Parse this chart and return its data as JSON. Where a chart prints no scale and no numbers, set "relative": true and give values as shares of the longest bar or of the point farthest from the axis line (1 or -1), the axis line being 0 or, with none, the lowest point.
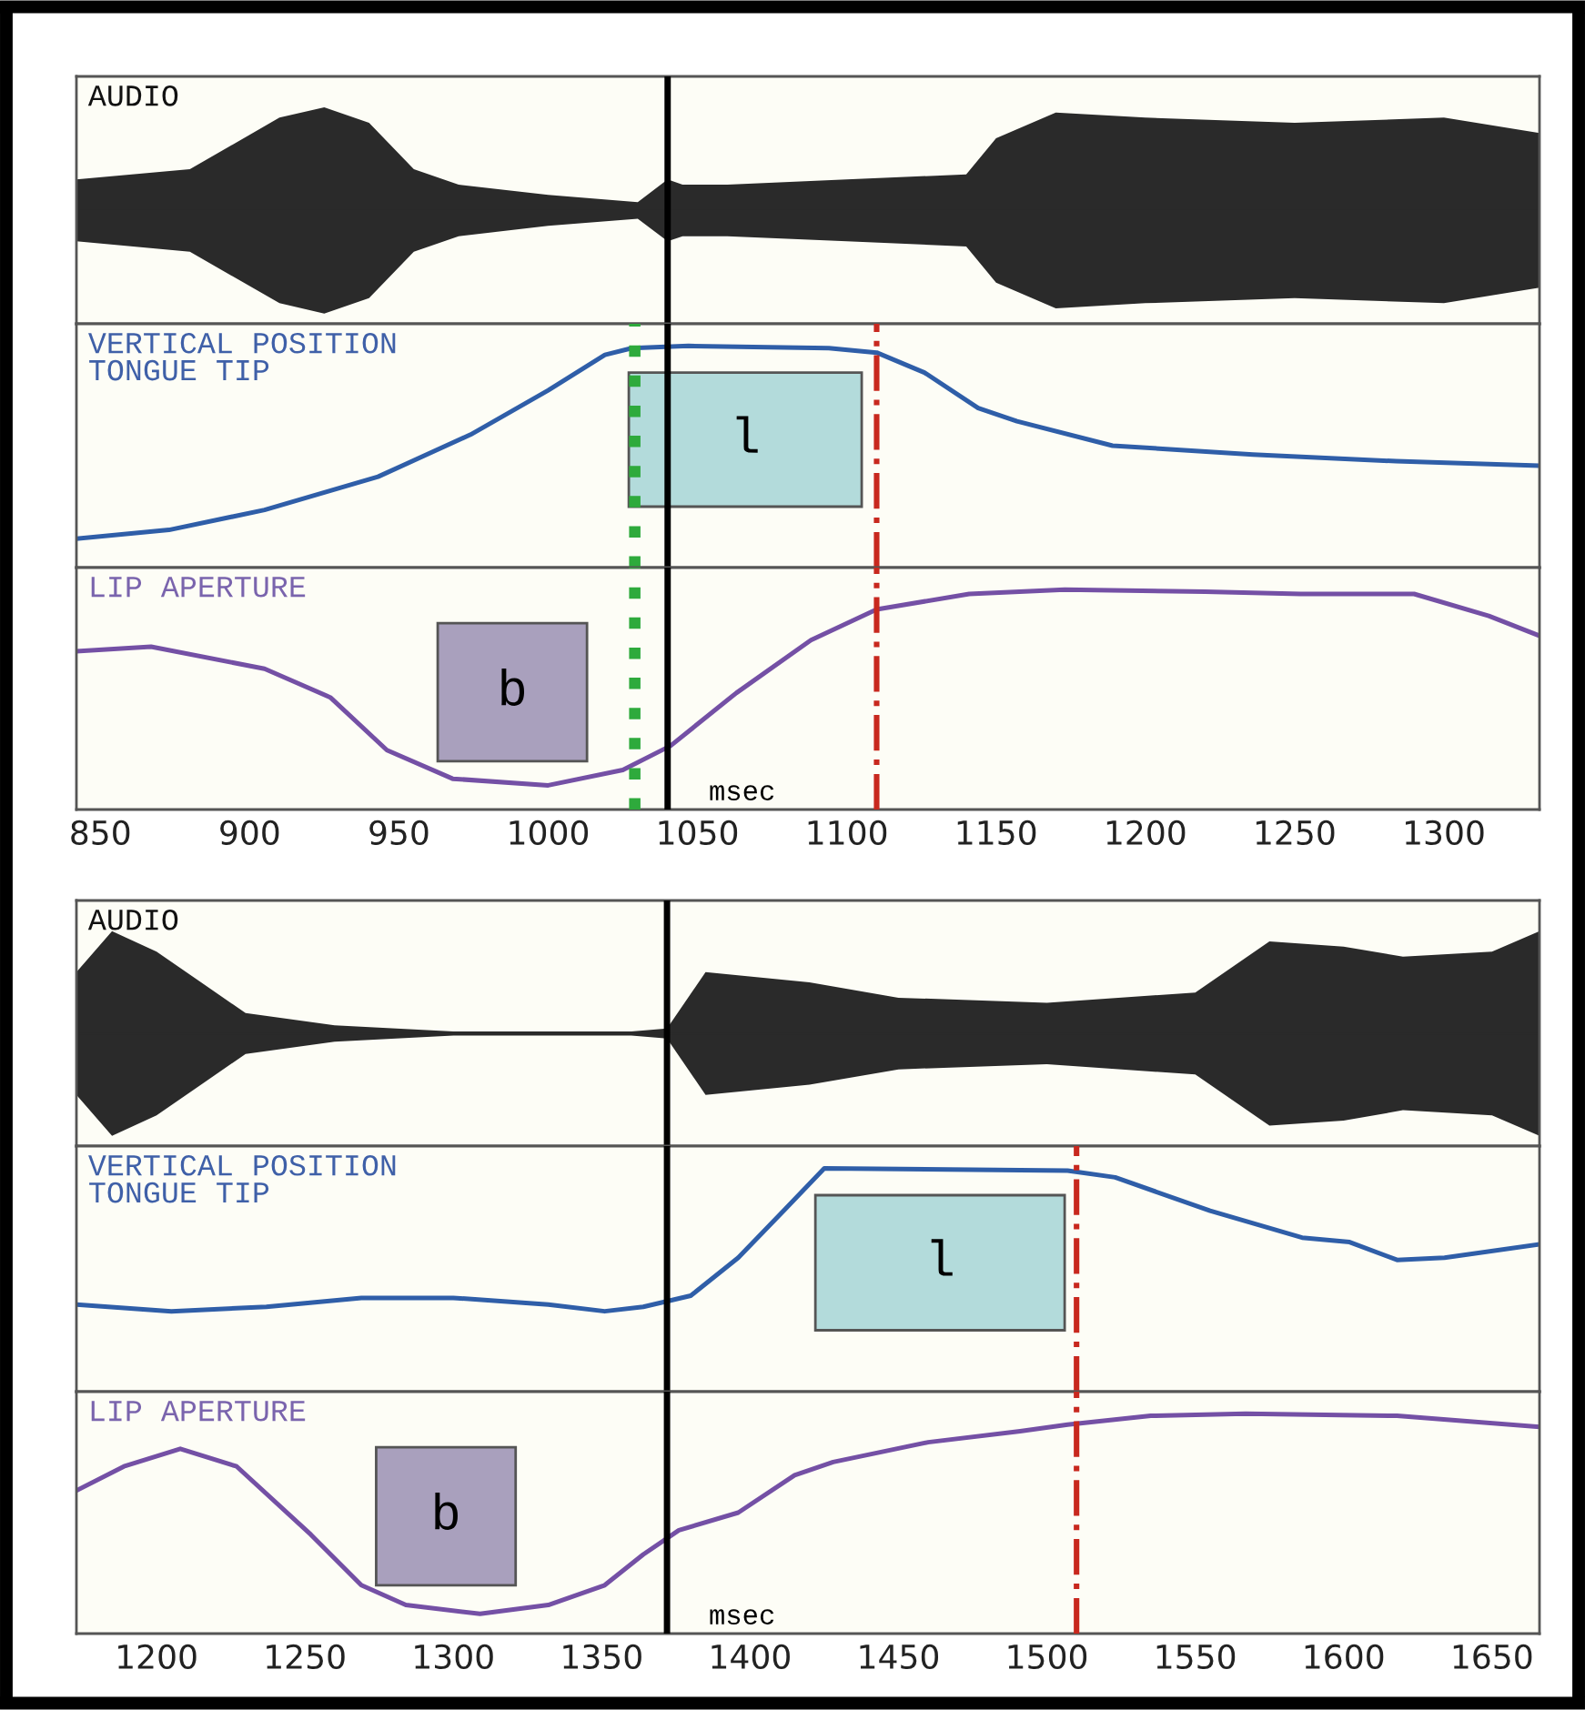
{
  "chart_data": [
    {
      "type": "area",
      "title": "AUDIO",
      "relative": true,
      "xlim": [
        842,
        1332
      ],
      "xticks": [
        850,
        900,
        950,
        1000,
        1050,
        1100,
        1150,
        1200,
        1250,
        1300
      ],
      "tick_labels": false,
      "series": [
        {
          "color": "#2a2a2a",
          "x": [
            842,
            880,
            910,
            925,
            940,
            955,
            970,
            1000,
            1030,
            1040,
            1045,
            1060,
            1100,
            1140,
            1150,
            1170,
            1200,
            1250,
            1300,
            1332
          ],
          "values": [
            0.3,
            0.4,
            0.9,
            1,
            0.85,
            0.4,
            0.25,
            0.15,
            0.08,
            0.3,
            0.25,
            0.25,
            0.3,
            0.35,
            0.7,
            0.95,
            0.9,
            0.85,
            0.9,
            0.75
          ]
        },
        {
          "color": "#2a2a2a",
          "x": [
            842,
            880,
            910,
            925,
            940,
            955,
            970,
            1000,
            1030,
            1040,
            1045,
            1060,
            1100,
            1140,
            1150,
            1170,
            1200,
            1250,
            1300,
            1332
          ],
          "values": [
            -0.3,
            -0.4,
            -0.9,
            -1,
            -0.85,
            -0.4,
            -0.25,
            -0.15,
            -0.08,
            -0.3,
            -0.25,
            -0.25,
            -0.3,
            -0.35,
            -0.7,
            -0.95,
            -0.9,
            -0.85,
            -0.9,
            -0.75
          ]
        }
      ],
      "ref_lines": [
        {
          "axis": "x",
          "value": 1040,
          "color": "#000000",
          "line_style": "solid"
        }
      ]
    },
    {
      "type": "line",
      "title": "VERTICAL POSITION\nTONGUE TIP",
      "relative": true,
      "xlim": [
        842,
        1332
      ],
      "xticks": [
        850,
        900,
        950,
        1000,
        1050,
        1100,
        1150,
        1200,
        1250,
        1300
      ],
      "tick_labels": false,
      "series": [
        {
          "color": "#2f5ea8",
          "x": [
            842,
            873,
            905,
            943,
            974,
            1000,
            1019,
            1028,
            1047,
            1094,
            1110,
            1126,
            1144,
            1157,
            1189,
            1236,
            1284,
            1332
          ],
          "values": [
            0.13,
            0.17,
            0.26,
            0.41,
            0.6,
            0.8,
            0.96,
            0.99,
            1,
            0.99,
            0.97,
            0.88,
            0.72,
            0.66,
            0.55,
            0.51,
            0.48,
            0.46
          ]
        }
      ],
      "ref_lines": [
        {
          "axis": "x",
          "value": 1040,
          "color": "#000000",
          "line_style": "solid"
        },
        {
          "axis": "x",
          "value": 1029,
          "color": "#2eaa3c",
          "line_style": "dotted"
        },
        {
          "axis": "x",
          "value": 1110,
          "color": "#c8281e",
          "line_style": "dashdot"
        }
      ],
      "bands": [
        {
          "axis": "x",
          "from": 1027,
          "to": 1105,
          "label": "l",
          "color": "#b3dbdb"
        }
      ]
    },
    {
      "type": "line",
      "title": "LIP APERTURE",
      "relative": true,
      "xlim": [
        842,
        1332
      ],
      "xticks": [
        850,
        900,
        950,
        1000,
        1050,
        1100,
        1150,
        1200,
        1250,
        1300
      ],
      "tick_labels": "x",
      "series": [
        {
          "color": "#7450a5",
          "x": [
            842,
            867,
            905,
            927,
            946,
            968,
            1000,
            1025,
            1041,
            1063,
            1088,
            1110,
            1141,
            1173,
            1220,
            1252,
            1290,
            1315,
            1332
          ],
          "values": [
            0.72,
            0.74,
            0.64,
            0.51,
            0.27,
            0.14,
            0.11,
            0.18,
            0.29,
            0.53,
            0.77,
            0.91,
            0.98,
            1,
            0.99,
            0.98,
            0.98,
            0.88,
            0.79
          ]
        }
      ],
      "ref_lines": [
        {
          "axis": "x",
          "value": 1040,
          "color": "#000000",
          "line_style": "solid"
        },
        {
          "axis": "x",
          "value": 1029,
          "color": "#2eaa3c",
          "line_style": "dotted"
        },
        {
          "axis": "x",
          "value": 1110,
          "color": "#c8281e",
          "line_style": "dashdot"
        }
      ],
      "bands": [
        {
          "axis": "x",
          "from": 963,
          "to": 1013,
          "label": "b",
          "color": "#a9a0bd"
        }
      ],
      "annotations": [
        "msec"
      ]
    },
    {
      "type": "area",
      "title": "AUDIO",
      "relative": true,
      "xlim": [
        1173,
        1666
      ],
      "xticks": [
        1200,
        1250,
        1300,
        1350,
        1400,
        1450,
        1500,
        1550,
        1600,
        1650
      ],
      "tick_labels": false,
      "series": [
        {
          "color": "#2a2a2a",
          "x": [
            1173,
            1185,
            1200,
            1215,
            1230,
            1260,
            1300,
            1360,
            1372,
            1385,
            1420,
            1450,
            1500,
            1550,
            1575,
            1600,
            1620,
            1650,
            1666
          ],
          "values": [
            0.6,
            1,
            0.8,
            0.5,
            0.2,
            0.08,
            0.02,
            0.02,
            0.05,
            0.6,
            0.5,
            0.35,
            0.3,
            0.4,
            0.9,
            0.85,
            0.75,
            0.8,
            1
          ]
        },
        {
          "color": "#2a2a2a",
          "x": [
            1173,
            1185,
            1200,
            1215,
            1230,
            1260,
            1300,
            1360,
            1372,
            1385,
            1420,
            1450,
            1500,
            1550,
            1575,
            1600,
            1620,
            1650,
            1666
          ],
          "values": [
            -0.6,
            -1,
            -0.8,
            -0.5,
            -0.2,
            -0.08,
            -0.02,
            -0.02,
            -0.05,
            -0.6,
            -0.5,
            -0.35,
            -0.3,
            -0.4,
            -0.9,
            -0.85,
            -0.75,
            -0.8,
            -1
          ]
        }
      ],
      "ref_lines": [
        {
          "axis": "x",
          "value": 1372,
          "color": "#000000",
          "line_style": "solid"
        }
      ]
    },
    {
      "type": "line",
      "title": "VERTICAL POSITION\nTONGUE TIP",
      "relative": true,
      "xlim": [
        1173,
        1666
      ],
      "xticks": [
        1200,
        1250,
        1300,
        1350,
        1400,
        1450,
        1500,
        1550,
        1600,
        1650
      ],
      "tick_labels": false,
      "series": [
        {
          "color": "#2f5ea8",
          "x": [
            1173,
            1205,
            1237,
            1269,
            1300,
            1332,
            1351,
            1364,
            1380,
            1396,
            1412,
            1425,
            1507,
            1523,
            1555,
            1586,
            1602,
            1618,
            1634,
            1666
          ],
          "values": [
            0.39,
            0.36,
            0.38,
            0.42,
            0.42,
            0.39,
            0.36,
            0.38,
            0.43,
            0.6,
            0.82,
            1,
            0.99,
            0.96,
            0.81,
            0.69,
            0.67,
            0.59,
            0.6,
            0.66
          ]
        }
      ],
      "ref_lines": [
        {
          "axis": "x",
          "value": 1372,
          "color": "#000000",
          "line_style": "solid"
        },
        {
          "axis": "x",
          "value": 1510,
          "color": "#c8281e",
          "line_style": "dashdot"
        }
      ],
      "bands": [
        {
          "axis": "x",
          "from": 1422,
          "to": 1506,
          "label": "l",
          "color": "#b3dbdb"
        }
      ]
    },
    {
      "type": "line",
      "title": "LIP APERTURE",
      "relative": true,
      "xlim": [
        1173,
        1666
      ],
      "xticks": [
        1200,
        1250,
        1300,
        1350,
        1400,
        1450,
        1500,
        1550,
        1600,
        1650
      ],
      "tick_labels": "x",
      "series": [
        {
          "color": "#7450a5",
          "x": [
            1173,
            1189,
            1208,
            1227,
            1252,
            1269,
            1284,
            1309,
            1332,
            1351,
            1364,
            1376,
            1396,
            1415,
            1428,
            1460,
            1491,
            1507,
            1535,
            1567,
            1618,
            1666
          ],
          "values": [
            0.65,
            0.76,
            0.84,
            0.76,
            0.45,
            0.22,
            0.13,
            0.09,
            0.13,
            0.22,
            0.36,
            0.47,
            0.55,
            0.72,
            0.78,
            0.87,
            0.92,
            0.95,
            0.99,
            1,
            0.99,
            0.94
          ]
        }
      ],
      "ref_lines": [
        {
          "axis": "x",
          "value": 1372,
          "color": "#000000",
          "line_style": "solid"
        },
        {
          "axis": "x",
          "value": 1510,
          "color": "#c8281e",
          "line_style": "dashdot"
        }
      ],
      "bands": [
        {
          "axis": "x",
          "from": 1274,
          "to": 1321,
          "label": "b",
          "color": "#a9a0bd"
        }
      ],
      "annotations": [
        "msec"
      ]
    }
  ]
}
